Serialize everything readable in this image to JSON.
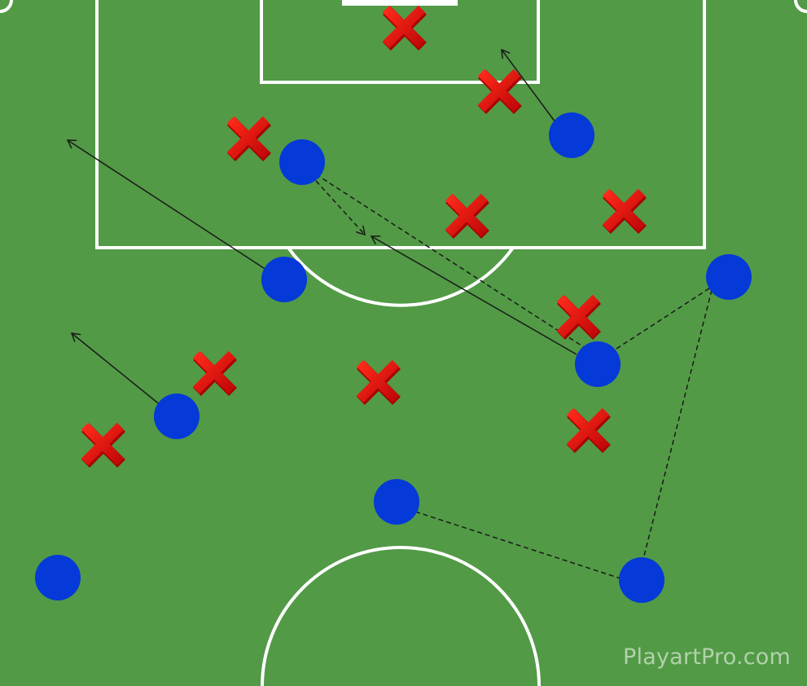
{
  "colors": {
    "pitch": "#529a46",
    "lines": "#ffffff",
    "player": "#0539d8",
    "opponent": "#e01010",
    "arrow": "#1a1a1a"
  },
  "watermark": "PlayartPro.com",
  "legend_icons": {
    "player": "blue-circle",
    "opponent": "red-x-icon"
  }
}
